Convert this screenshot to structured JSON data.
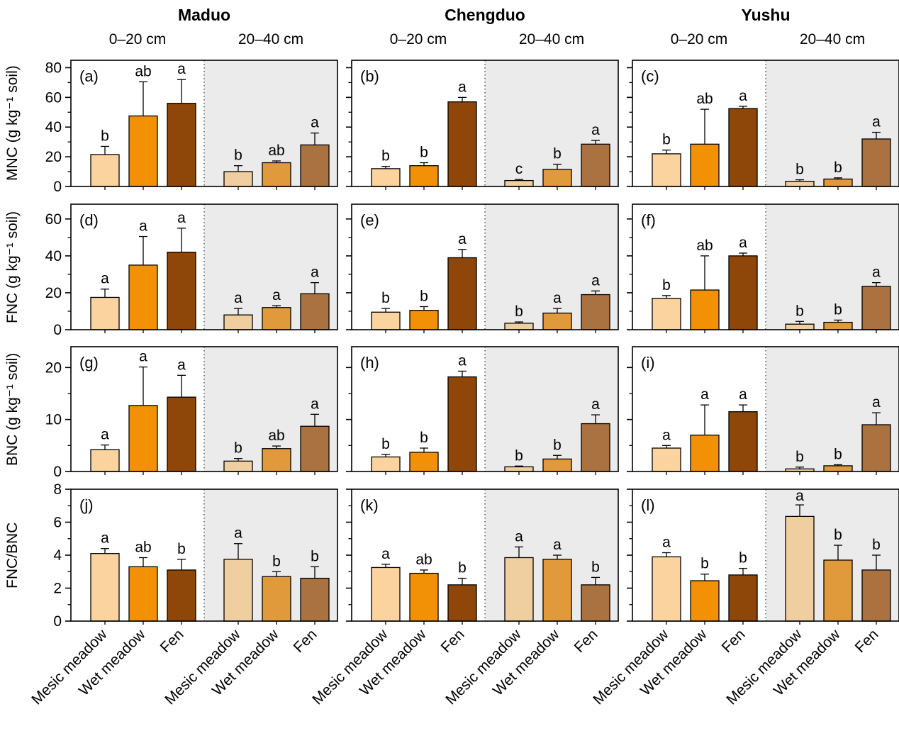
{
  "figure_title": "",
  "header": {
    "sites": [
      "Maduo",
      "Chengduo",
      "Yushu"
    ],
    "depth_labels": [
      "0–20 cm",
      "20–40 cm"
    ]
  },
  "colors": {
    "bars_0_20": [
      "#FAD39E",
      "#F39106",
      "#8E4708"
    ],
    "bars_20_40": [
      "#EFCFA0",
      "#E19A3B",
      "#A97240"
    ],
    "shade_20_40_background": "#EBEBEB",
    "bar_edge": "#000000",
    "frame": "#000000"
  },
  "chart_data": {
    "type": "bar",
    "grid": false,
    "legend": "none",
    "categories": [
      "Mesic meadow",
      "Wet meadow",
      "Fen"
    ],
    "depths": [
      "0–20 cm",
      "20–40 cm"
    ],
    "sites": [
      "Maduo",
      "Chengduo",
      "Yushu"
    ],
    "rows": [
      {
        "label": "MNC (g kg⁻¹ soil)",
        "ylim": [
          0,
          85
        ],
        "yticks": [
          0,
          20,
          40,
          60,
          80
        ],
        "minor_step": 10
      },
      {
        "label": "FNC (g kg⁻¹ soil)",
        "ylim": [
          0,
          68
        ],
        "yticks": [
          0,
          20,
          40,
          60
        ],
        "minor_step": 10
      },
      {
        "label": "BNC (g kg⁻¹ soil)",
        "ylim": [
          0,
          24
        ],
        "yticks": [
          0,
          10,
          20
        ],
        "minor_step": 5
      },
      {
        "label": "FNC/BNC",
        "ylim": [
          0,
          8
        ],
        "yticks": [
          0,
          2,
          4,
          6,
          8
        ],
        "minor_step": 1
      }
    ],
    "panels": [
      {
        "id": "(a)",
        "row": 0,
        "site": "Maduo",
        "groups": [
          {
            "depth": "0–20 cm",
            "values": [
              21.5,
              47.5,
              56
            ],
            "errors": [
              5.5,
              23,
              16
            ],
            "letters": [
              "b",
              "ab",
              "a"
            ]
          },
          {
            "depth": "20–40 cm",
            "values": [
              10,
              16,
              28
            ],
            "errors": [
              4,
              1.2,
              8
            ],
            "letters": [
              "b",
              "ab",
              "a"
            ]
          }
        ]
      },
      {
        "id": "(b)",
        "row": 0,
        "site": "Chengduo",
        "groups": [
          {
            "depth": "0–20 cm",
            "values": [
              12,
              14,
              57
            ],
            "errors": [
              1.5,
              2,
              3
            ],
            "letters": [
              "b",
              "b",
              "a"
            ]
          },
          {
            "depth": "20–40 cm",
            "values": [
              4,
              11.5,
              28.5
            ],
            "errors": [
              0.7,
              3.5,
              2.5
            ],
            "letters": [
              "c",
              "b",
              "a"
            ]
          }
        ]
      },
      {
        "id": "(c)",
        "row": 0,
        "site": "Yushu",
        "groups": [
          {
            "depth": "0–20 cm",
            "values": [
              22,
              28.5,
              52.5
            ],
            "errors": [
              2.5,
              23.5,
              1.5
            ],
            "letters": [
              "b",
              "ab",
              "a"
            ]
          },
          {
            "depth": "20–40 cm",
            "values": [
              3.5,
              5,
              32
            ],
            "errors": [
              1,
              0.8,
              4.5
            ],
            "letters": [
              "b",
              "b",
              "a"
            ]
          }
        ]
      },
      {
        "id": "(d)",
        "row": 1,
        "site": "Maduo",
        "groups": [
          {
            "depth": "0–20 cm",
            "values": [
              17.5,
              35,
              42
            ],
            "errors": [
              4.5,
              15.5,
              13
            ],
            "letters": [
              "a",
              "a",
              "a"
            ]
          },
          {
            "depth": "20–40 cm",
            "values": [
              8,
              12,
              19.5
            ],
            "errors": [
              3.5,
              1,
              6
            ],
            "letters": [
              "a",
              "a",
              "a"
            ]
          }
        ]
      },
      {
        "id": "(e)",
        "row": 1,
        "site": "Chengduo",
        "groups": [
          {
            "depth": "0–20 cm",
            "values": [
              9.5,
              10.5,
              39
            ],
            "errors": [
              2,
              2,
              4.5
            ],
            "letters": [
              "b",
              "b",
              "a"
            ]
          },
          {
            "depth": "20–40 cm",
            "values": [
              3.5,
              9,
              19
            ],
            "errors": [
              0.7,
              2.5,
              2
            ],
            "letters": [
              "b",
              "a",
              "a"
            ]
          }
        ]
      },
      {
        "id": "(f)",
        "row": 1,
        "site": "Yushu",
        "groups": [
          {
            "depth": "0–20 cm",
            "values": [
              17,
              21.5,
              40
            ],
            "errors": [
              1.5,
              18.5,
              1.5
            ],
            "letters": [
              "b",
              "ab",
              "a"
            ]
          },
          {
            "depth": "20–40 cm",
            "values": [
              3,
              4,
              23.5
            ],
            "errors": [
              1.5,
              1.2,
              2
            ],
            "letters": [
              "b",
              "b",
              "a"
            ]
          }
        ]
      },
      {
        "id": "(g)",
        "row": 2,
        "site": "Maduo",
        "groups": [
          {
            "depth": "0–20 cm",
            "values": [
              4.2,
              12.7,
              14.3
            ],
            "errors": [
              0.9,
              7.4,
              4.2
            ],
            "letters": [
              "a",
              "a",
              "a"
            ]
          },
          {
            "depth": "20–40 cm",
            "values": [
              2,
              4.4,
              8.7
            ],
            "errors": [
              0.5,
              0.5,
              2.3
            ],
            "letters": [
              "b",
              "ab",
              "a"
            ]
          }
        ]
      },
      {
        "id": "(h)",
        "row": 2,
        "site": "Chengduo",
        "groups": [
          {
            "depth": "0–20 cm",
            "values": [
              2.8,
              3.7,
              18.2
            ],
            "errors": [
              0.5,
              0.8,
              1.1
            ],
            "letters": [
              "b",
              "b",
              "a"
            ]
          },
          {
            "depth": "20–40 cm",
            "values": [
              0.9,
              2.4,
              9.2
            ],
            "errors": [
              0.15,
              0.7,
              1.7
            ],
            "letters": [
              "b",
              "b",
              "a"
            ]
          }
        ]
      },
      {
        "id": "(i)",
        "row": 2,
        "site": "Yushu",
        "groups": [
          {
            "depth": "0–20 cm",
            "values": [
              4.5,
              7,
              11.5
            ],
            "errors": [
              0.5,
              5.8,
              1.3
            ],
            "letters": [
              "a",
              "a",
              "a"
            ]
          },
          {
            "depth": "20–40 cm",
            "values": [
              0.5,
              1.1,
              9
            ],
            "errors": [
              0.35,
              0.2,
              2.3
            ],
            "letters": [
              "b",
              "b",
              "a"
            ]
          }
        ]
      },
      {
        "id": "(j)",
        "row": 3,
        "site": "Maduo",
        "groups": [
          {
            "depth": "0–20 cm",
            "values": [
              4.1,
              3.3,
              3.1
            ],
            "errors": [
              0.3,
              0.55,
              0.65
            ],
            "letters": [
              "a",
              "ab",
              "b"
            ]
          },
          {
            "depth": "20–40 cm",
            "values": [
              3.75,
              2.7,
              2.6
            ],
            "errors": [
              0.95,
              0.3,
              0.7
            ],
            "letters": [
              "a",
              "b",
              "b"
            ]
          }
        ]
      },
      {
        "id": "(k)",
        "row": 3,
        "site": "Chengduo",
        "groups": [
          {
            "depth": "0–20 cm",
            "values": [
              3.25,
              2.9,
              2.2
            ],
            "errors": [
              0.2,
              0.2,
              0.4
            ],
            "letters": [
              "a",
              "ab",
              "b"
            ]
          },
          {
            "depth": "20–40 cm",
            "values": [
              3.85,
              3.75,
              2.2
            ],
            "errors": [
              0.65,
              0.25,
              0.45
            ],
            "letters": [
              "a",
              "a",
              "b"
            ]
          }
        ]
      },
      {
        "id": "(l)",
        "row": 3,
        "site": "Yushu",
        "groups": [
          {
            "depth": "0–20 cm",
            "values": [
              3.9,
              2.45,
              2.8
            ],
            "errors": [
              0.25,
              0.4,
              0.4
            ],
            "letters": [
              "a",
              "b",
              "b"
            ]
          },
          {
            "depth": "20–40 cm",
            "values": [
              6.35,
              3.7,
              3.1
            ],
            "errors": [
              0.7,
              0.9,
              0.9
            ],
            "letters": [
              "a",
              "b",
              "b"
            ]
          }
        ]
      }
    ]
  }
}
